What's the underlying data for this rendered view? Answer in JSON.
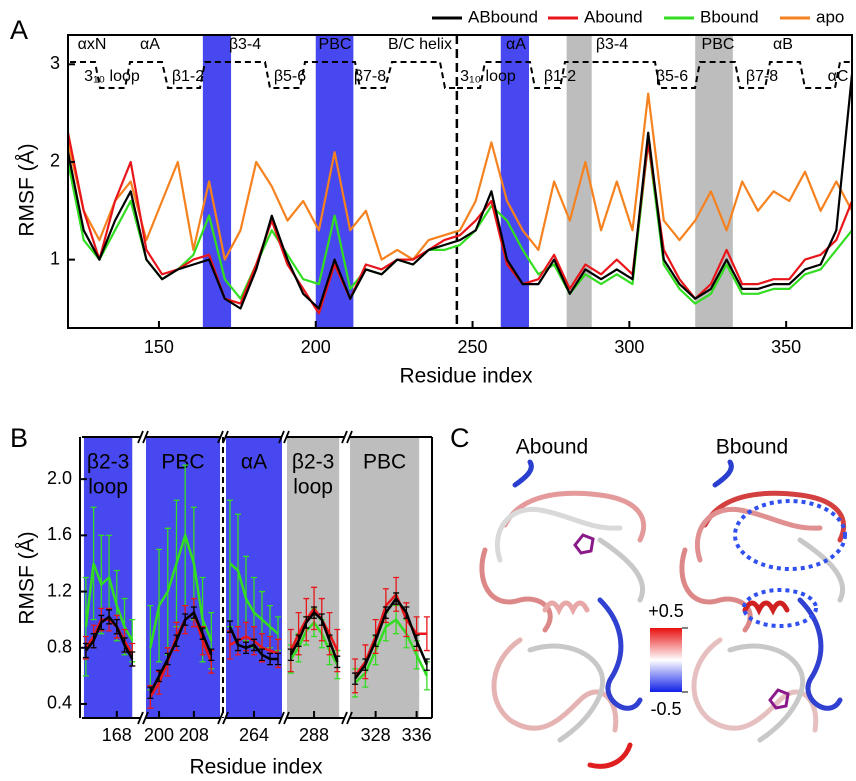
{
  "chart_data": [
    {
      "type": "line",
      "panel_label": "A",
      "xlabel": "Residue index",
      "ylabel": "RMSF (Å)",
      "x": [
        121,
        126,
        131,
        136,
        141,
        146,
        151,
        156,
        161,
        166,
        171,
        176,
        181,
        186,
        191,
        196,
        201,
        206,
        211,
        216,
        221,
        226,
        231,
        236,
        241,
        246,
        251,
        256,
        261,
        266,
        271,
        276,
        281,
        286,
        291,
        296,
        301,
        306,
        311,
        316,
        321,
        326,
        331,
        336,
        341,
        346,
        351,
        356,
        361,
        366,
        371
      ],
      "xlim": [
        121,
        371
      ],
      "xticks": [
        150,
        200,
        250,
        300,
        350
      ],
      "ylim": [
        0.3,
        3.3
      ],
      "yticks": [
        1,
        2,
        3
      ],
      "legend": "top",
      "series": [
        {
          "name": "ABbound",
          "color": "#000000",
          "values": [
            2.1,
            1.3,
            1.0,
            1.4,
            1.7,
            1.0,
            0.8,
            0.9,
            0.95,
            1.0,
            0.6,
            0.5,
            0.9,
            1.45,
            1.0,
            0.65,
            0.5,
            1.0,
            0.6,
            0.9,
            0.85,
            1.0,
            0.95,
            1.1,
            1.15,
            1.2,
            1.3,
            1.7,
            1.0,
            0.75,
            0.75,
            1.0,
            0.65,
            0.9,
            0.8,
            0.9,
            0.8,
            2.3,
            1.0,
            0.75,
            0.6,
            0.7,
            1.0,
            0.7,
            0.7,
            0.75,
            0.75,
            0.9,
            0.95,
            1.3,
            2.9
          ]
        },
        {
          "name": "Abound",
          "color": "#e8161b",
          "values": [
            2.3,
            1.5,
            1.0,
            1.6,
            2.0,
            1.1,
            0.85,
            0.9,
            1.0,
            1.05,
            0.6,
            0.55,
            0.95,
            1.4,
            0.95,
            0.7,
            0.45,
            0.95,
            0.6,
            0.95,
            0.9,
            1.0,
            1.0,
            1.1,
            1.2,
            1.25,
            1.4,
            1.6,
            0.95,
            0.75,
            0.8,
            1.05,
            0.7,
            0.95,
            0.85,
            1.0,
            0.85,
            2.2,
            1.1,
            0.8,
            0.6,
            0.75,
            1.1,
            0.75,
            0.75,
            0.8,
            0.8,
            1.0,
            1.05,
            1.2,
            1.6
          ]
        },
        {
          "name": "Bbound",
          "color": "#33dd22",
          "values": [
            2.0,
            1.2,
            1.0,
            1.3,
            1.6,
            1.0,
            0.8,
            0.9,
            1.05,
            1.45,
            0.8,
            0.6,
            0.95,
            1.3,
            1.05,
            0.8,
            0.75,
            1.45,
            0.7,
            0.9,
            0.85,
            1.0,
            0.95,
            1.1,
            1.1,
            1.15,
            1.3,
            1.55,
            1.4,
            1.1,
            0.85,
            0.95,
            0.65,
            0.85,
            0.75,
            0.85,
            0.75,
            2.2,
            0.95,
            0.7,
            0.55,
            0.65,
            0.95,
            0.65,
            0.65,
            0.7,
            0.7,
            0.85,
            0.9,
            1.1,
            1.3
          ]
        },
        {
          "name": "apo",
          "color": "#f5821f",
          "values": [
            2.2,
            1.5,
            1.2,
            1.6,
            1.8,
            1.2,
            1.6,
            2.0,
            1.1,
            1.8,
            1.0,
            1.3,
            2.0,
            1.75,
            1.4,
            1.6,
            1.3,
            2.1,
            1.3,
            1.5,
            1.0,
            1.1,
            1.0,
            1.2,
            1.25,
            1.3,
            1.6,
            2.2,
            1.6,
            1.3,
            1.1,
            1.8,
            1.4,
            2.0,
            1.3,
            1.8,
            1.3,
            2.7,
            1.4,
            1.2,
            1.4,
            1.7,
            1.3,
            1.8,
            1.5,
            1.7,
            1.6,
            1.9,
            1.5,
            1.8,
            1.5
          ]
        }
      ],
      "bands": [
        {
          "range": [
            164,
            173
          ],
          "color": "#4848f0"
        },
        {
          "range": [
            200,
            212
          ],
          "color": "#4848f0"
        },
        {
          "range": [
            259,
            268
          ],
          "color": "#4848f0"
        },
        {
          "range": [
            280,
            288
          ],
          "color": "#bdbdbd"
        },
        {
          "range": [
            321,
            333
          ],
          "color": "#bdbdbd"
        }
      ],
      "divider": 245,
      "annotations": [
        "αxN",
        "αA",
        "β3-4",
        "PBC",
        "B/C helix",
        "αA",
        "β3-4",
        "PBC",
        "αB",
        "3₁₀ loop",
        "β1-2",
        "β5-6",
        "β7-8",
        "3₁₀ loop",
        "β1-2",
        "β5-6",
        "β7-8",
        "αC"
      ]
    },
    {
      "type": "broken-line",
      "panel_label": "B",
      "xlabel": "Residue index",
      "ylabel": "RMSF (Å)",
      "ylim": [
        0.3,
        2.3
      ],
      "yticks": [
        0.4,
        0.8,
        1.2,
        1.6,
        {
          "value": 2.0,
          "label": "2.0"
        }
      ],
      "segments": [
        {
          "label": [
            "β2-3",
            "loop"
          ],
          "band_color": "#4848f0",
          "band": [
            159.5,
            172
          ],
          "xlim": [
            159,
            174
          ],
          "xticks": [
            168
          ],
          "x": [
            160,
            162,
            164,
            166,
            168,
            170,
            172
          ],
          "series": [
            {
              "color": "#33dd22",
              "values": [
                0.95,
                1.4,
                1.25,
                1.3,
                1.1,
                0.95,
                0.85
              ],
              "errors": [
                0.35,
                0.4,
                0.35,
                0.3,
                0.25,
                0.2,
                0.15
              ]
            },
            {
              "color": "#e8161b",
              "values": [
                0.8,
                0.88,
                1.0,
                1.0,
                0.95,
                0.85,
                0.75
              ],
              "errors": [
                0.08,
                0.08,
                0.08,
                0.08,
                0.08,
                0.08,
                0.08
              ]
            },
            {
              "color": "#000000",
              "values": [
                0.78,
                0.85,
                0.98,
                1.02,
                0.95,
                0.82,
                0.72
              ],
              "errors": [
                0.05,
                0.05,
                0.05,
                0.05,
                0.05,
                0.05,
                0.05
              ]
            }
          ]
        },
        {
          "label": [
            "PBC"
          ],
          "band_color": "#4848f0",
          "band": [
            197,
            214
          ],
          "xlim": [
            197,
            214
          ],
          "xticks": [
            200,
            208
          ],
          "x": [
            198,
            200,
            202,
            204,
            206,
            208,
            210,
            212
          ],
          "series": [
            {
              "color": "#33dd22",
              "values": [
                0.8,
                1.1,
                1.2,
                1.4,
                1.6,
                1.4,
                1.0,
                0.85
              ],
              "errors": [
                0.3,
                0.4,
                0.45,
                0.45,
                0.5,
                0.4,
                0.3,
                0.2
              ]
            },
            {
              "color": "#e8161b",
              "values": [
                0.45,
                0.55,
                0.7,
                0.88,
                1.0,
                1.05,
                0.85,
                0.7
              ],
              "errors": [
                0.08,
                0.08,
                0.1,
                0.1,
                0.1,
                0.1,
                0.1,
                0.08
              ]
            },
            {
              "color": "#000000",
              "values": [
                0.48,
                0.6,
                0.72,
                0.85,
                1.0,
                1.05,
                0.9,
                0.75
              ],
              "errors": [
                0.04,
                0.04,
                0.04,
                0.04,
                0.04,
                0.04,
                0.04,
                0.04
              ]
            }
          ]
        },
        {
          "label": [
            "αA"
          ],
          "band_color": "#4848f0",
          "band": [
            257,
            271
          ],
          "xlim": [
            257,
            271
          ],
          "xticks": [
            264
          ],
          "x": [
            258,
            260,
            262,
            264,
            266,
            268,
            270
          ],
          "series": [
            {
              "color": "#33dd22",
              "values": [
                1.4,
                1.35,
                1.15,
                1.05,
                1.0,
                0.95,
                0.9
              ],
              "errors": [
                0.45,
                0.4,
                0.3,
                0.25,
                0.2,
                0.15,
                0.12
              ]
            },
            {
              "color": "#e8161b",
              "values": [
                0.82,
                0.85,
                0.88,
                0.85,
                0.8,
                0.78,
                0.76
              ],
              "errors": [
                0.1,
                0.1,
                0.1,
                0.1,
                0.1,
                0.1,
                0.1
              ]
            },
            {
              "color": "#000000",
              "values": [
                0.95,
                0.82,
                0.8,
                0.82,
                0.75,
                0.72,
                0.72
              ],
              "errors": [
                0.04,
                0.04,
                0.04,
                0.04,
                0.04,
                0.04,
                0.04
              ]
            }
          ]
        },
        {
          "label": [
            "β2-3",
            "loop"
          ],
          "band_color": "#bdbdbd",
          "band": [
            281,
            294.5
          ],
          "xlim": [
            281,
            296
          ],
          "xticks": [
            288
          ],
          "x": [
            282,
            284,
            286,
            288,
            290,
            292,
            294
          ],
          "series": [
            {
              "color": "#33dd22",
              "values": [
                0.72,
                0.8,
                0.92,
                0.98,
                0.9,
                0.78,
                0.68
              ],
              "errors": [
                0.1,
                0.1,
                0.1,
                0.1,
                0.1,
                0.1,
                0.1
              ]
            },
            {
              "color": "#e8161b",
              "values": [
                0.78,
                0.9,
                1.0,
                1.08,
                1.0,
                0.9,
                0.78
              ],
              "errors": [
                0.15,
                0.15,
                0.15,
                0.15,
                0.15,
                0.15,
                0.15
              ]
            },
            {
              "color": "#000000",
              "values": [
                0.75,
                0.85,
                0.98,
                1.05,
                1.0,
                0.85,
                0.7
              ],
              "errors": [
                0.04,
                0.04,
                0.04,
                0.04,
                0.04,
                0.04,
                0.04
              ]
            }
          ]
        },
        {
          "label": [
            "PBC"
          ],
          "band_color": "#bdbdbd",
          "band": [
            323,
            336.5
          ],
          "xlim": [
            323,
            339
          ],
          "xticks": [
            328,
            336
          ],
          "x": [
            324,
            326,
            328,
            330,
            332,
            334,
            336,
            338
          ],
          "series": [
            {
              "color": "#33dd22",
              "values": [
                0.55,
                0.62,
                0.78,
                0.95,
                1.0,
                0.9,
                0.75,
                0.6
              ],
              "errors": [
                0.1,
                0.1,
                0.1,
                0.1,
                0.1,
                0.1,
                0.1,
                0.1
              ]
            },
            {
              "color": "#e8161b",
              "values": [
                0.6,
                0.7,
                0.88,
                1.1,
                1.18,
                1.0,
                0.9,
                0.9
              ],
              "errors": [
                0.12,
                0.12,
                0.12,
                0.12,
                0.12,
                0.12,
                0.12,
                0.12
              ]
            },
            {
              "color": "#000000",
              "values": [
                0.58,
                0.68,
                0.85,
                1.05,
                1.15,
                1.05,
                0.85,
                0.68
              ],
              "errors": [
                0.04,
                0.04,
                0.04,
                0.04,
                0.04,
                0.04,
                0.04,
                0.04
              ]
            }
          ]
        }
      ]
    }
  ],
  "structure_panel": {
    "panel_label": "C",
    "titles": [
      "Abound",
      "Bbound"
    ],
    "colorbar": {
      "ticks": [
        {
          "value": 0.5,
          "label": "+0.5"
        },
        -0.5
      ]
    }
  }
}
